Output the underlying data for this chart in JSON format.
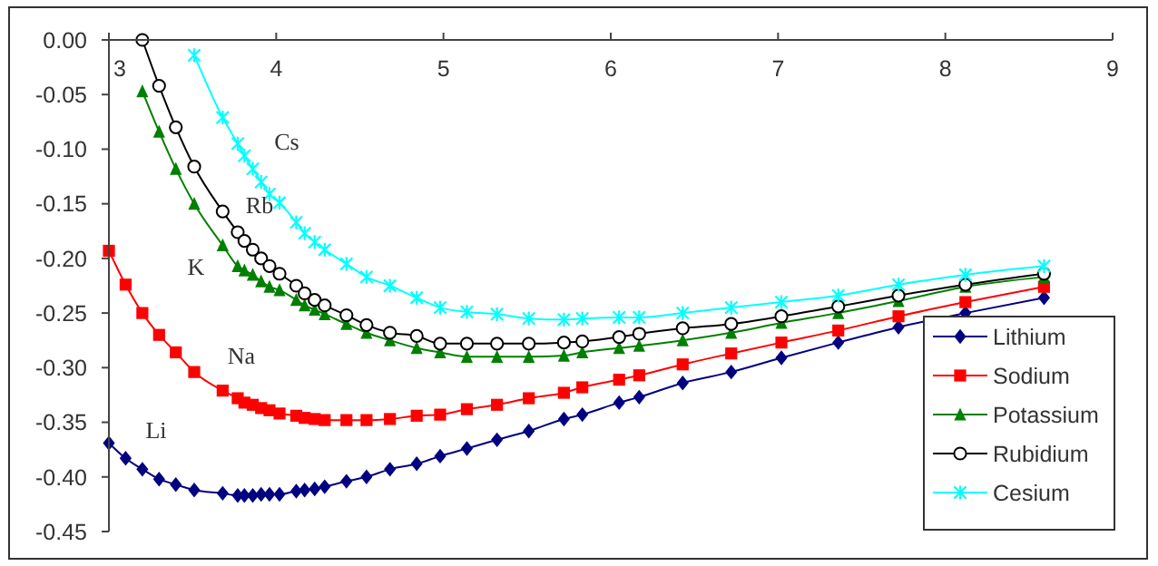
{
  "chart_data": {
    "type": "line",
    "x": [
      3.0,
      3.1,
      3.2,
      3.3,
      3.4,
      3.51,
      3.68,
      3.77,
      3.81,
      3.86,
      3.91,
      3.96,
      4.02,
      4.12,
      4.17,
      4.23,
      4.29,
      4.42,
      4.54,
      4.68,
      4.84,
      4.98,
      5.14,
      5.32,
      5.51,
      5.72,
      5.83,
      6.05,
      6.17,
      6.43,
      6.72,
      7.02,
      7.36,
      7.72,
      8.12,
      8.59
    ],
    "series": [
      {
        "name": "Lithium",
        "color": "#000080",
        "marker": "diamond",
        "values": [
          -0.369,
          -0.383,
          -0.393,
          -0.402,
          -0.407,
          -0.412,
          -0.415,
          -0.417,
          -0.417,
          -0.417,
          -0.416,
          -0.416,
          -0.416,
          -0.413,
          -0.412,
          -0.411,
          -0.409,
          -0.404,
          -0.4,
          -0.393,
          -0.388,
          -0.381,
          -0.374,
          -0.366,
          -0.358,
          -0.347,
          -0.343,
          -0.332,
          -0.327,
          -0.314,
          -0.304,
          -0.291,
          -0.277,
          -0.263,
          -0.25,
          -0.236
        ]
      },
      {
        "name": "Sodium",
        "color": "#ff0000",
        "marker": "square",
        "values": [
          -0.193,
          -0.224,
          -0.25,
          -0.27,
          -0.286,
          -0.304,
          -0.321,
          -0.328,
          -0.332,
          -0.334,
          -0.337,
          -0.339,
          -0.342,
          -0.344,
          -0.346,
          -0.347,
          -0.348,
          -0.348,
          -0.348,
          -0.347,
          -0.344,
          -0.343,
          -0.338,
          -0.334,
          -0.328,
          -0.323,
          -0.318,
          -0.311,
          -0.307,
          -0.297,
          -0.287,
          -0.277,
          -0.266,
          -0.253,
          -0.24,
          -0.226
        ]
      },
      {
        "name": "Potassium",
        "color": "#008000",
        "marker": "triangle",
        "values": [
          null,
          null,
          -0.047,
          -0.084,
          -0.118,
          -0.15,
          -0.188,
          -0.207,
          -0.211,
          -0.215,
          -0.221,
          -0.226,
          -0.229,
          -0.238,
          -0.243,
          -0.247,
          -0.251,
          -0.26,
          -0.268,
          -0.275,
          -0.282,
          -0.286,
          -0.29,
          -0.29,
          -0.29,
          -0.289,
          -0.286,
          -0.282,
          -0.28,
          -0.275,
          -0.268,
          -0.259,
          -0.25,
          -0.239,
          -0.226,
          -0.217
        ]
      },
      {
        "name": "Rubidium",
        "color": "#000000",
        "marker": "circle",
        "values": [
          null,
          null,
          0.0,
          -0.042,
          -0.08,
          -0.116,
          -0.157,
          -0.176,
          -0.184,
          -0.192,
          -0.2,
          -0.207,
          -0.214,
          -0.225,
          -0.232,
          -0.238,
          -0.243,
          -0.252,
          -0.261,
          -0.268,
          -0.271,
          -0.278,
          -0.278,
          -0.278,
          -0.278,
          -0.277,
          -0.276,
          -0.272,
          -0.269,
          -0.264,
          -0.26,
          -0.253,
          -0.244,
          -0.234,
          -0.224,
          -0.214
        ]
      },
      {
        "name": "Cesium",
        "color": "#00ffff",
        "marker": "cross",
        "values": [
          null,
          null,
          null,
          null,
          null,
          -0.014,
          -0.071,
          -0.095,
          -0.106,
          -0.118,
          -0.13,
          -0.141,
          -0.149,
          -0.167,
          -0.177,
          -0.185,
          -0.192,
          -0.205,
          -0.217,
          -0.225,
          -0.236,
          -0.245,
          -0.249,
          -0.251,
          -0.255,
          -0.256,
          -0.255,
          -0.254,
          -0.254,
          -0.25,
          -0.245,
          -0.24,
          -0.234,
          -0.224,
          -0.215,
          -0.207
        ]
      }
    ],
    "annotations": [
      "Cs",
      "Rb",
      "K",
      "Na",
      "Li"
    ],
    "xlim": [
      3,
      9
    ],
    "xticks": [
      3,
      4,
      5,
      6,
      7,
      8,
      9
    ],
    "ylim": [
      -0.45,
      0
    ],
    "yticks": [
      {
        "value": 0,
        "label": "0.00"
      },
      {
        "value": -0.05,
        "label": "-0.05"
      },
      {
        "value": -0.1,
        "label": "-0.10"
      },
      {
        "value": -0.15,
        "label": "-0.15"
      },
      {
        "value": -0.2,
        "label": "-0.20"
      },
      {
        "value": -0.25,
        "label": "-0.25"
      },
      {
        "value": -0.3,
        "label": "-0.30"
      },
      {
        "value": -0.35,
        "label": "-0.35"
      },
      {
        "value": -0.4,
        "label": "-0.40"
      },
      {
        "value": -0.45,
        "label": "-0.45"
      }
    ],
    "grid": false,
    "legend": "bottom right",
    "line_style": "solid"
  }
}
